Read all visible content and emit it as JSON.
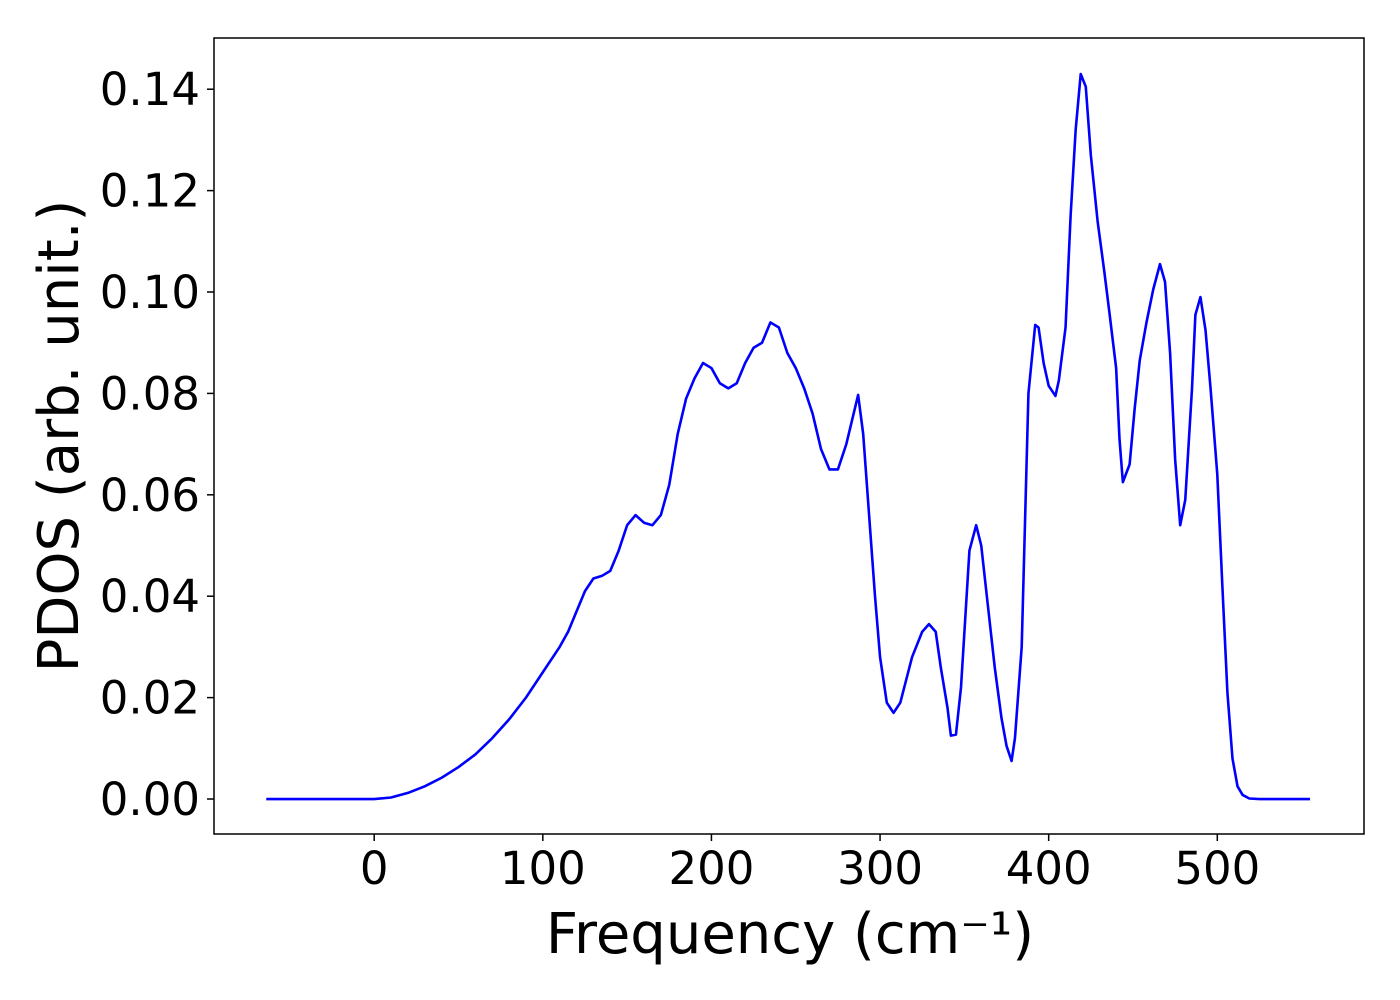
{
  "chart_data": {
    "type": "line",
    "xlabel": "Frequency (cm⁻¹)",
    "ylabel": "PDOS (arb. unit.)",
    "xlim": [
      -95,
      587
    ],
    "ylim": [
      -0.0069,
      0.1501
    ],
    "xticks": [
      0,
      100,
      200,
      300,
      400,
      500
    ],
    "yticks": [
      {
        "value": 0,
        "label": "0.00"
      },
      {
        "value": 0.02,
        "label": "0.02"
      },
      {
        "value": 0.04,
        "label": "0.04"
      },
      {
        "value": 0.06,
        "label": "0.06"
      },
      {
        "value": 0.08,
        "label": "0.08"
      },
      {
        "value": 0.1,
        "label": "0.10"
      },
      {
        "value": 0.12,
        "label": "0.12"
      },
      {
        "value": 0.14,
        "label": "0.14"
      }
    ],
    "grid": false,
    "series": [
      {
        "color": "#0000ff",
        "x": [
          -64,
          -30,
          0,
          10,
          20,
          30,
          40,
          50,
          60,
          70,
          80,
          90,
          100,
          110,
          115,
          120,
          125,
          130,
          135,
          140,
          145,
          150,
          155,
          160,
          165,
          170,
          175,
          180,
          185,
          190,
          195,
          200,
          205,
          210,
          215,
          220,
          225,
          230,
          235,
          240,
          245,
          250,
          255,
          260,
          265,
          270,
          275,
          280,
          287,
          290,
          297,
          300,
          304,
          308,
          312,
          319,
          325,
          329,
          333,
          336,
          340,
          342,
          345,
          348,
          353,
          357,
          360,
          364,
          368,
          372,
          375,
          378,
          380,
          384,
          388,
          392,
          394,
          397,
          400,
          404,
          406,
          410,
          413,
          416,
          419,
          422,
          425,
          429,
          433,
          436,
          440,
          442,
          444,
          448,
          451,
          454,
          458,
          462,
          466,
          469,
          472,
          475,
          478,
          481,
          485,
          487,
          490,
          493,
          496,
          500,
          503,
          506,
          509,
          512,
          515,
          519,
          525,
          555
        ],
        "values": [
          0,
          0,
          0,
          0.0003,
          0.0012,
          0.0025,
          0.0042,
          0.0063,
          0.0088,
          0.012,
          0.0157,
          0.02,
          0.025,
          0.03,
          0.033,
          0.037,
          0.041,
          0.0435,
          0.044,
          0.045,
          0.049,
          0.054,
          0.056,
          0.0545,
          0.054,
          0.056,
          0.062,
          0.072,
          0.079,
          0.083,
          0.086,
          0.085,
          0.082,
          0.081,
          0.082,
          0.086,
          0.089,
          0.09,
          0.094,
          0.093,
          0.088,
          0.085,
          0.081,
          0.076,
          0.069,
          0.065,
          0.065,
          0.07,
          0.0797,
          0.072,
          0.04,
          0.028,
          0.019,
          0.017,
          0.019,
          0.028,
          0.033,
          0.0345,
          0.033,
          0.026,
          0.018,
          0.0125,
          0.0127,
          0.022,
          0.049,
          0.054,
          0.05,
          0.038,
          0.026,
          0.016,
          0.0105,
          0.0075,
          0.012,
          0.03,
          0.08,
          0.0935,
          0.093,
          0.086,
          0.0815,
          0.0795,
          0.0825,
          0.093,
          0.115,
          0.132,
          0.143,
          0.1405,
          0.127,
          0.114,
          0.104,
          0.096,
          0.085,
          0.071,
          0.0625,
          0.066,
          0.077,
          0.0865,
          0.094,
          0.1005,
          0.1055,
          0.102,
          0.088,
          0.067,
          0.054,
          0.059,
          0.081,
          0.0955,
          0.099,
          0.0925,
          0.081,
          0.064,
          0.042,
          0.021,
          0.008,
          0.0025,
          0.0008,
          0.0001,
          0,
          0
        ]
      }
    ]
  }
}
